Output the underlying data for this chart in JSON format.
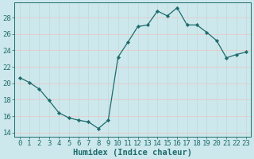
{
  "x": [
    0,
    1,
    2,
    3,
    4,
    5,
    6,
    7,
    8,
    9,
    10,
    11,
    12,
    13,
    14,
    15,
    16,
    17,
    18,
    19,
    20,
    21,
    22,
    23
  ],
  "y": [
    20.7,
    20.1,
    19.3,
    17.9,
    16.4,
    15.8,
    15.5,
    15.3,
    14.5,
    15.5,
    23.2,
    25.0,
    26.9,
    27.1,
    28.8,
    28.2,
    29.2,
    27.1,
    27.1,
    26.2,
    25.2,
    23.1,
    23.5,
    23.8
  ],
  "bg_color": "#cce8ec",
  "line_color": "#1e6b6b",
  "marker_color": "#1e6b6b",
  "grid_color_h": "#e8c8c8",
  "grid_color_v": "#c8d8d8",
  "xlabel": "Humidex (Indice chaleur)",
  "ylim": [
    13.5,
    29.8
  ],
  "xlim": [
    -0.5,
    23.5
  ],
  "yticks": [
    14,
    16,
    18,
    20,
    22,
    24,
    26,
    28
  ],
  "xticks": [
    0,
    1,
    2,
    3,
    4,
    5,
    6,
    7,
    8,
    9,
    10,
    11,
    12,
    13,
    14,
    15,
    16,
    17,
    18,
    19,
    20,
    21,
    22,
    23
  ],
  "font_color": "#1e6b6b",
  "tick_font_size": 6.5,
  "label_font_size": 7.5
}
